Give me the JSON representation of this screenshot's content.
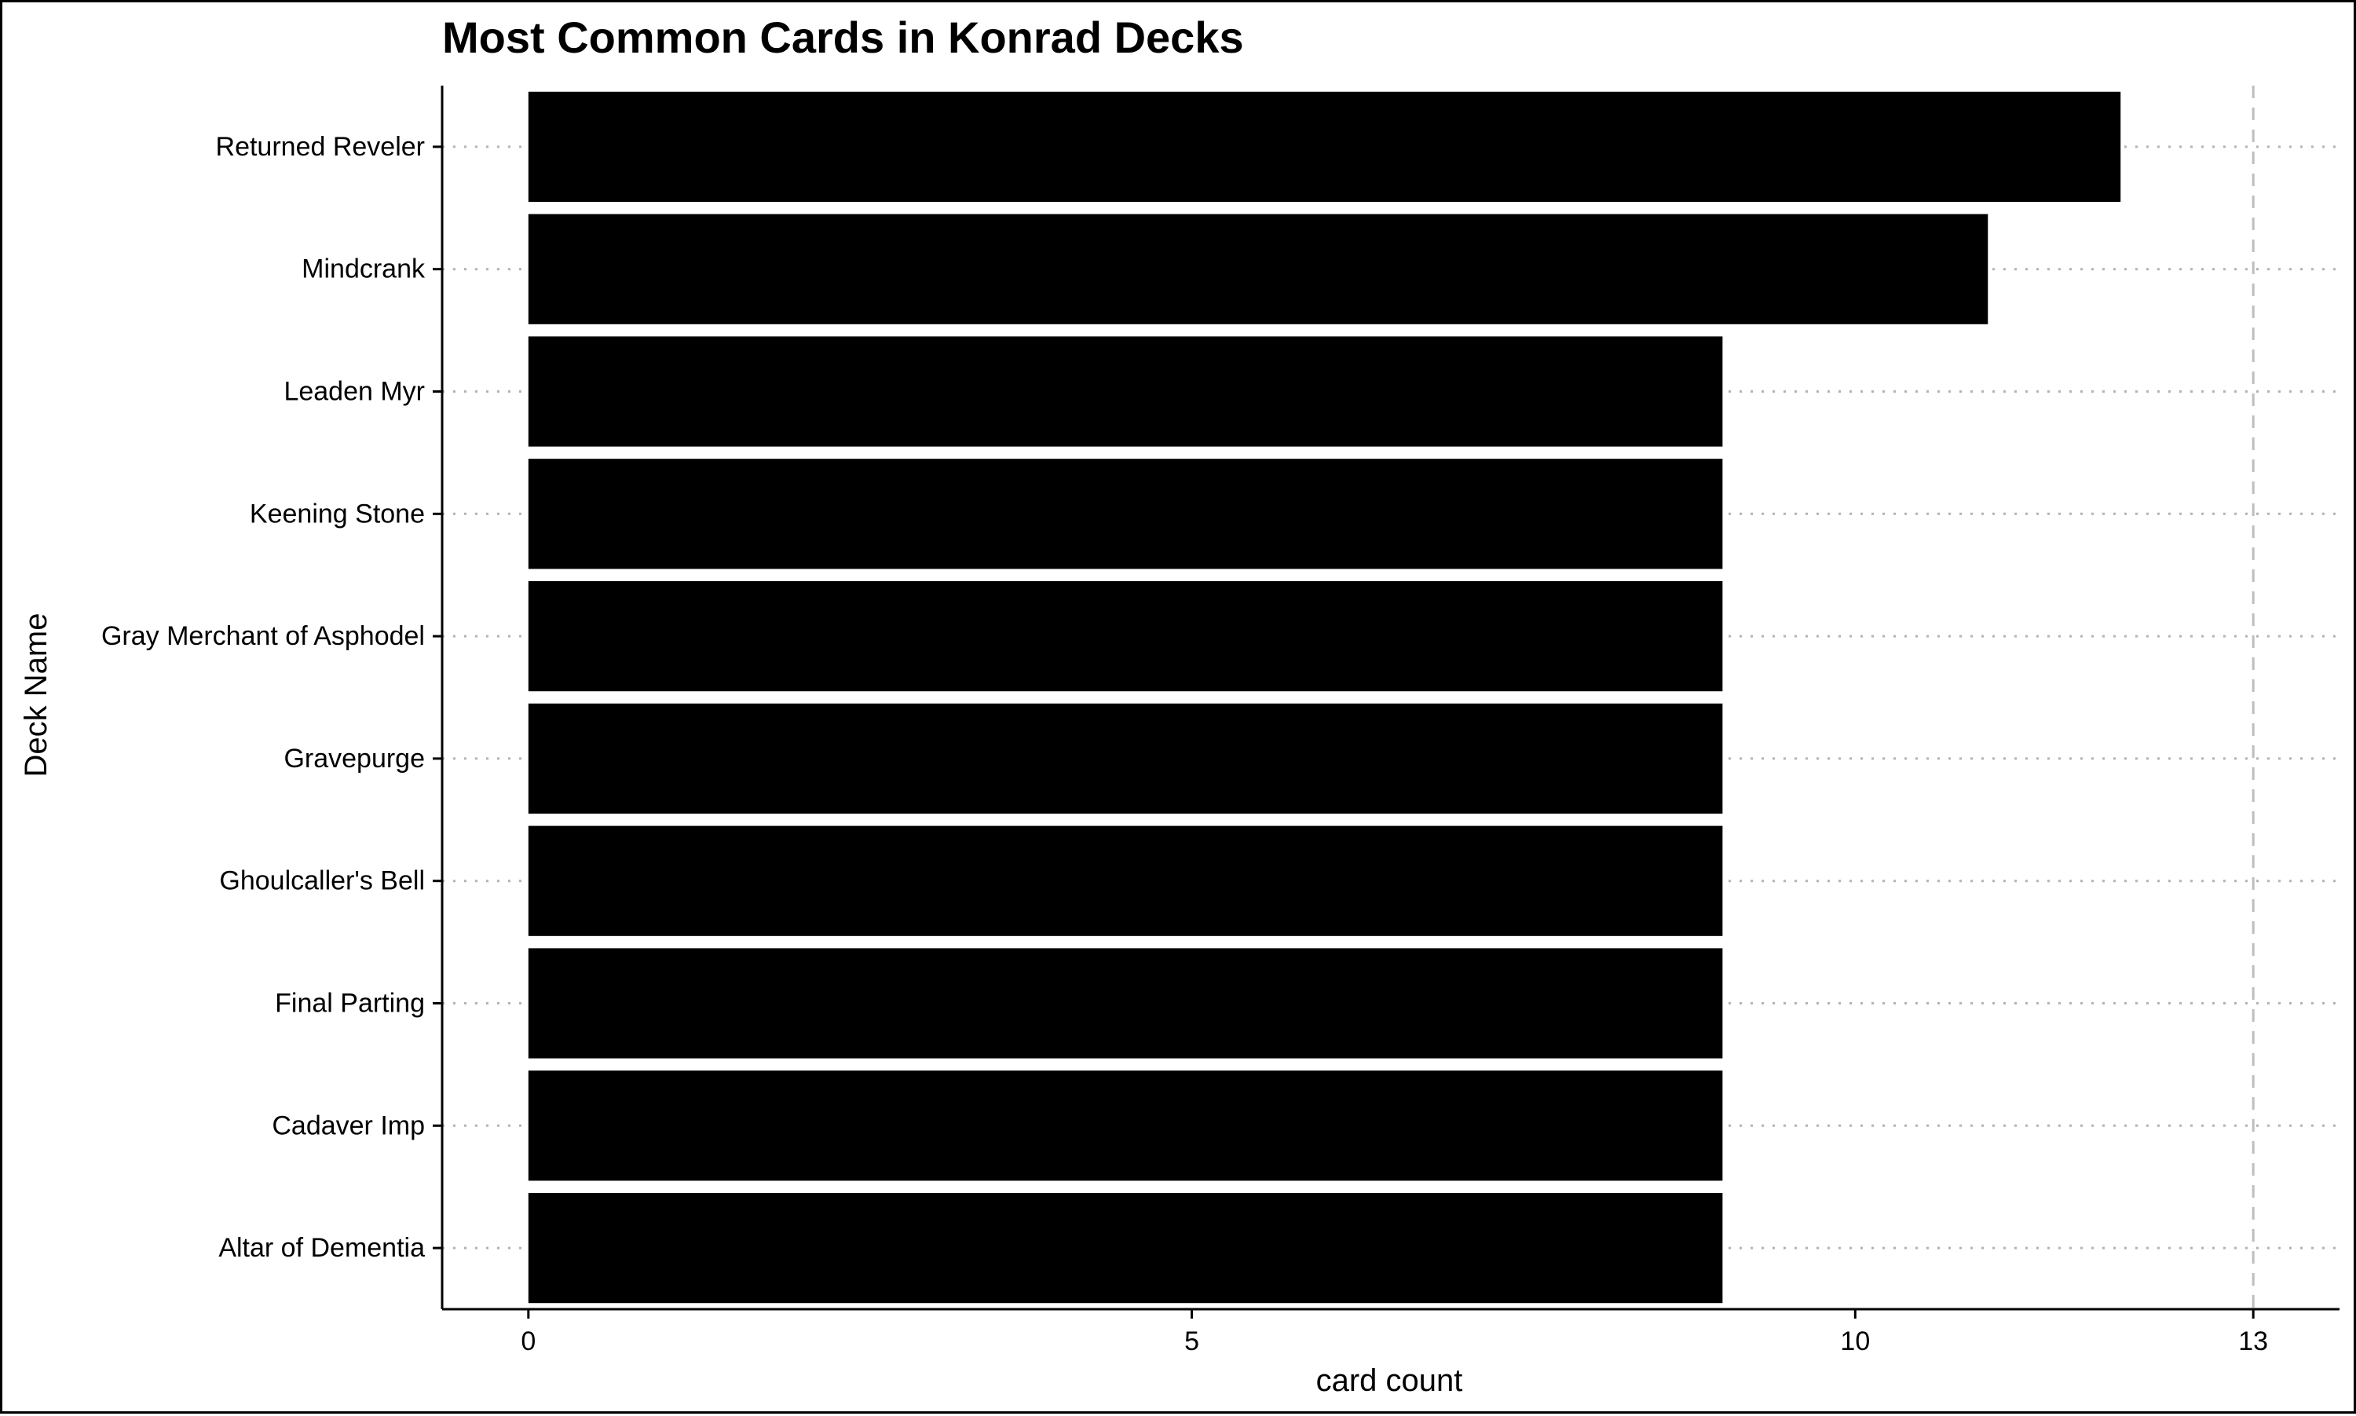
{
  "chart_data": {
    "type": "bar",
    "orientation": "horizontal",
    "title": "Most Common Cards in Konrad Decks",
    "xlabel": "card count",
    "ylabel": "Deck Name",
    "categories": [
      "Returned Reveler",
      "Mindcrank",
      "Leaden Myr",
      "Keening Stone",
      "Gray Merchant of Asphodel",
      "Gravepurge",
      "Ghoulcaller's Bell",
      "Final Parting",
      "Cadaver Imp",
      "Altar of Dementia"
    ],
    "values": [
      12,
      11,
      9,
      9,
      9,
      9,
      9,
      9,
      9,
      9
    ],
    "x_ticks": [
      0,
      5,
      10,
      13
    ],
    "xlim": [
      -0.65,
      13.65
    ],
    "reference_line": 13,
    "bar_color": "#000000",
    "grid": "horizontal dotted",
    "legend": "none"
  }
}
